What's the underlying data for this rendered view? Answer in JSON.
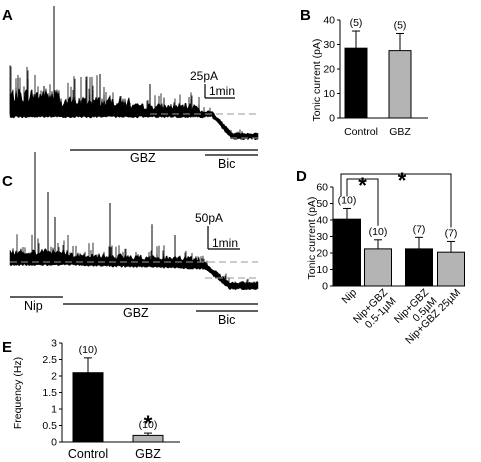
{
  "panels": {
    "A": {
      "label": "A",
      "scale_current": "25pA",
      "scale_time": "1min",
      "bars": {
        "gbz": "GBZ",
        "bic": "Bic"
      }
    },
    "B": {
      "label": "B"
    },
    "C": {
      "label": "C",
      "scale_current": "50pA",
      "scale_time": "1min",
      "bars": {
        "nip": "Nip",
        "gbz": "GBZ",
        "bic": "Bic"
      }
    },
    "D": {
      "label": "D"
    },
    "E": {
      "label": "E"
    }
  },
  "colors": {
    "black_bar": "#000000",
    "gray_bar": "#b4b4b4",
    "trace": "#000000",
    "dashed": "#9a9a9a"
  },
  "chart_data": [
    {
      "panel": "B",
      "type": "bar",
      "ylabel": "Tonic current (pA)",
      "ylim": [
        0,
        40
      ],
      "yticks": [
        "0",
        "10",
        "20",
        "30",
        "40"
      ],
      "categories": [
        "Control",
        "GBZ"
      ],
      "values": [
        28.5,
        27.5
      ],
      "errors": [
        7,
        7
      ],
      "n_labels": [
        "(5)",
        "(5)"
      ],
      "bar_colors": [
        "#000000",
        "#b4b4b4"
      ]
    },
    {
      "panel": "D",
      "type": "bar",
      "ylabel": "Tonic current (pA)",
      "ylim": [
        0,
        60
      ],
      "yticks": [
        "0",
        "10",
        "20",
        "30",
        "40",
        "50",
        "60"
      ],
      "categories": [
        "Nip",
        "Nip+GBZ 0.5-1µM",
        "Nip+GBZ 0.5µM",
        "Nip+GBZ 25µM"
      ],
      "tick_lines": [
        [
          "Nip"
        ],
        [
          "Nip+GBZ",
          "0.5-1µM"
        ],
        [
          "Nip+GBZ",
          "0.5µM"
        ],
        [
          "Nip+GBZ 25µM"
        ]
      ],
      "values": [
        40.5,
        22.5,
        22.5,
        20.5
      ],
      "errors": [
        6.5,
        5.5,
        7,
        6.5
      ],
      "n_labels": [
        "(10)",
        "(10)",
        "(7)",
        "(7)"
      ],
      "bar_colors": [
        "#000000",
        "#b4b4b4",
        "#000000",
        "#b4b4b4"
      ],
      "significance": [
        "*",
        "*"
      ]
    },
    {
      "panel": "E",
      "type": "bar",
      "ylabel": "Frequency (Hz)",
      "ylim": [
        0,
        3
      ],
      "yticks": [
        "0",
        "0.5",
        "1",
        "1.5",
        "2",
        "2.5",
        "3"
      ],
      "categories": [
        "Control",
        "GBZ"
      ],
      "values": [
        2.1,
        0.2
      ],
      "errors": [
        0.45,
        0.07
      ],
      "n_labels": [
        "(10)",
        "(10)"
      ],
      "bar_colors": [
        "#000000",
        "#b4b4b4"
      ],
      "significance": [
        "*"
      ]
    }
  ]
}
